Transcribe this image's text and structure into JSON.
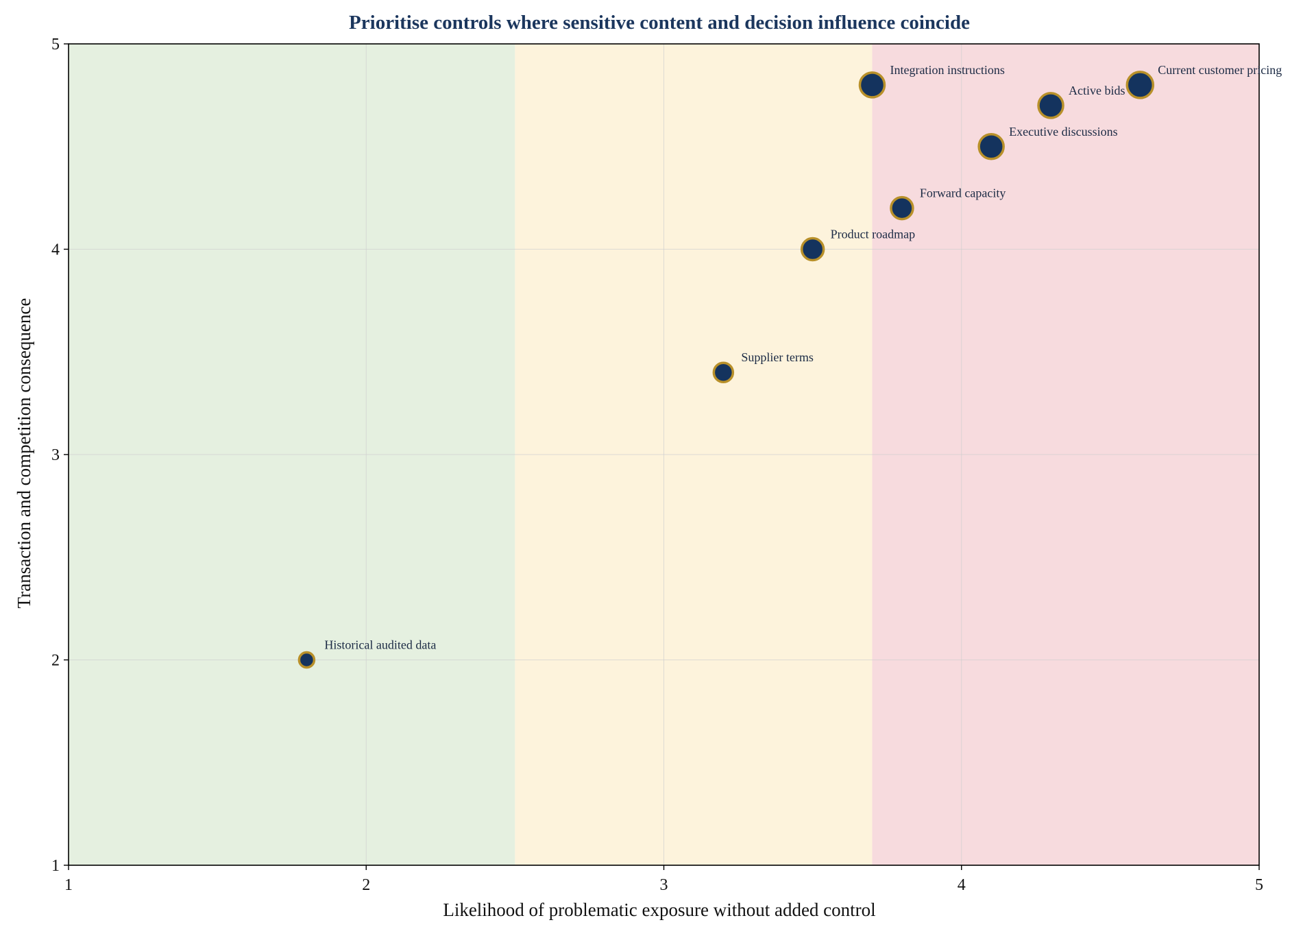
{
  "chart_data": {
    "type": "scatter",
    "title": "Prioritise controls where sensitive content and decision influence coincide",
    "xlabel": "Likelihood of problematic exposure without added control",
    "ylabel": "Transaction and competition consequence",
    "xlim": [
      1,
      5
    ],
    "ylim": [
      1,
      5
    ],
    "xticks": [
      "1",
      "2",
      "3",
      "4",
      "5"
    ],
    "yticks": [
      "1",
      "2",
      "3",
      "4",
      "5"
    ],
    "grid": true,
    "zones": [
      {
        "x_from": 1,
        "x_to": 2.5,
        "color": "#e5f0e0"
      },
      {
        "x_from": 2.5,
        "x_to": 3.7,
        "color": "#fdf3dc"
      },
      {
        "x_from": 3.7,
        "x_to": 5,
        "color": "#f7dbde"
      }
    ],
    "marker_fill": "#14335e",
    "marker_edge": "#b8902a",
    "points": [
      {
        "label": "Historical audited data",
        "x": 1.8,
        "y": 2.0,
        "size": 1
      },
      {
        "label": "Supplier terms",
        "x": 3.2,
        "y": 3.4,
        "size": 2
      },
      {
        "label": "Product roadmap",
        "x": 3.5,
        "y": 4.0,
        "size": 3
      },
      {
        "label": "Forward capacity",
        "x": 3.8,
        "y": 4.2,
        "size": 3
      },
      {
        "label": "Integration instructions",
        "x": 3.7,
        "y": 4.8,
        "size": 4
      },
      {
        "label": "Executive discussions",
        "x": 4.1,
        "y": 4.5,
        "size": 4
      },
      {
        "label": "Active bids",
        "x": 4.3,
        "y": 4.7,
        "size": 4
      },
      {
        "label": "Current customer pricing",
        "x": 4.6,
        "y": 4.8,
        "size": 5
      }
    ]
  }
}
